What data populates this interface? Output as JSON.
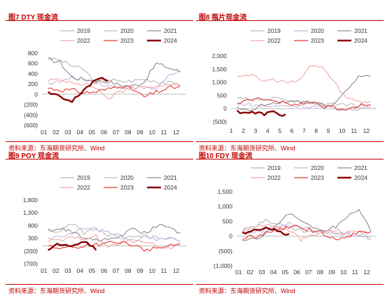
{
  "colors": {
    "y2019": "#b8b8b8",
    "y2020": "#c8b4dc",
    "y2021": "#8c8c8c",
    "y2022": "#f4a6a6",
    "y2023": "#e53935",
    "y2024": "#8b0000"
  },
  "chart_data": [
    {
      "type": "line",
      "title": "图7  DTY 现金流",
      "source": "资料来源：东海期货研究所、Wind",
      "months": [
        "01",
        "02",
        "03",
        "04",
        "05",
        "06",
        "07",
        "08",
        "09",
        "10",
        "11",
        "12"
      ],
      "yticks": [
        "800",
        "600",
        "400",
        "200",
        "0",
        "(200)",
        "(400)",
        "(600)"
      ],
      "ylim": [
        -600,
        800
      ],
      "series": [
        {
          "name": "2019",
          "values": [
            700,
            660,
            560,
            480,
            220,
            300,
            240,
            260,
            300,
            260,
            220,
            200
          ]
        },
        {
          "name": "2020",
          "values": [
            220,
            240,
            320,
            300,
            240,
            160,
            140,
            120,
            120,
            110,
            360,
            420
          ]
        },
        {
          "name": "2021",
          "values": [
            680,
            620,
            330,
            290,
            260,
            250,
            180,
            160,
            240,
            600,
            520,
            440
          ]
        },
        {
          "name": "2022",
          "values": [
            280,
            270,
            250,
            200,
            130,
            -80,
            40,
            140,
            160,
            130,
            220,
            200
          ]
        },
        {
          "name": "2023",
          "values": [
            120,
            90,
            80,
            30,
            50,
            100,
            180,
            100,
            -50,
            40,
            120,
            150
          ]
        },
        {
          "name": "2024",
          "values": [
            30,
            -60,
            -150,
            100,
            290,
            280
          ]
        }
      ]
    },
    {
      "type": "line",
      "title": "图8  瓶片现金流",
      "source": "资料来源：东海期货研究所、Wind",
      "months": [
        "1",
        "2",
        "3",
        "4",
        "5",
        "6",
        "7",
        "8",
        "9",
        "10",
        "11",
        "12"
      ],
      "yticks": [
        "2,000",
        "1,500",
        "1,000",
        "500",
        "0",
        "(500)"
      ],
      "ylim": [
        -500,
        2000
      ],
      "series": [
        {
          "name": "2019",
          "values": [
            400,
            350,
            300,
            400,
            350,
            250,
            200,
            150,
            200,
            150,
            100,
            80
          ]
        },
        {
          "name": "2020",
          "values": [
            200,
            150,
            100,
            80,
            120,
            100,
            80,
            60,
            0,
            -50,
            0,
            50
          ]
        },
        {
          "name": "2021",
          "values": [
            0,
            -100,
            100,
            200,
            250,
            300,
            200,
            150,
            150,
            700,
            1200,
            1300
          ]
        },
        {
          "name": "2022",
          "values": [
            1250,
            1300,
            1050,
            1100,
            1000,
            1000,
            1600,
            1600,
            1000,
            400,
            300,
            250
          ]
        },
        {
          "name": "2023",
          "values": [
            200,
            300,
            400,
            250,
            200,
            150,
            300,
            100,
            50,
            -100,
            100,
            200
          ]
        },
        {
          "name": "2024",
          "values": [
            -100,
            -150,
            -200,
            -150,
            -250
          ]
        }
      ]
    },
    {
      "type": "line",
      "title": "图9  POY 现金流",
      "source": "资料来源：东海期货研究所、Wind",
      "months": [
        "01",
        "02",
        "03",
        "04",
        "05",
        "06",
        "07",
        "08",
        "09",
        "10",
        "11",
        "12"
      ],
      "yticks": [
        "1,800",
        "1,300",
        "800",
        "300",
        "(200)",
        "(700)"
      ],
      "ylim": [
        -700,
        1800
      ],
      "series": [
        {
          "name": "2019",
          "values": [
            700,
            500,
            900,
            500,
            700,
            400,
            400,
            300,
            400,
            300,
            300,
            200
          ]
        },
        {
          "name": "2020",
          "values": [
            300,
            350,
            450,
            700,
            650,
            550,
            350,
            250,
            300,
            250,
            300,
            250
          ]
        },
        {
          "name": "2021",
          "values": [
            600,
            700,
            550,
            350,
            250,
            300,
            400,
            700,
            500,
            750,
            800,
            500
          ]
        },
        {
          "name": "2022",
          "values": [
            200,
            200,
            300,
            300,
            400,
            -50,
            100,
            200,
            200,
            0,
            -100,
            50
          ]
        },
        {
          "name": "2023",
          "values": [
            0,
            -100,
            -50,
            0,
            50,
            100,
            150,
            50,
            -150,
            -100,
            0,
            50
          ]
        },
        {
          "name": "2024",
          "values": [
            -200,
            100,
            50,
            200,
            -100
          ]
        }
      ]
    },
    {
      "type": "line",
      "title": "图10  FDY 现金流",
      "source": "资料来源：东海期货研究所、Wind",
      "months": [
        "01",
        "02",
        "03",
        "04",
        "05",
        "06",
        "07",
        "08",
        "09",
        "10",
        "11",
        "12"
      ],
      "yticks": [
        "1,500",
        "1,000",
        "500",
        "0",
        "(500)",
        "(1,000)"
      ],
      "ylim": [
        -1000,
        1500
      ],
      "series": [
        {
          "name": "2019",
          "values": [
            200,
            300,
            600,
            400,
            300,
            200,
            150,
            100,
            150,
            100,
            50,
            -50
          ]
        },
        {
          "name": "2020",
          "values": [
            100,
            150,
            200,
            300,
            400,
            300,
            200,
            150,
            100,
            100,
            0,
            -100
          ]
        },
        {
          "name": "2021",
          "values": [
            -200,
            -100,
            100,
            400,
            800,
            500,
            300,
            200,
            300,
            700,
            900,
            200
          ]
        },
        {
          "name": "2022",
          "values": [
            200,
            300,
            400,
            300,
            200,
            -100,
            0,
            150,
            200,
            100,
            200,
            100
          ]
        },
        {
          "name": "2023",
          "values": [
            -100,
            0,
            100,
            200,
            300,
            300,
            200,
            100,
            -100,
            0,
            100,
            150
          ]
        },
        {
          "name": "2024",
          "values": [
            100,
            200,
            300,
            150,
            100
          ]
        }
      ]
    }
  ]
}
